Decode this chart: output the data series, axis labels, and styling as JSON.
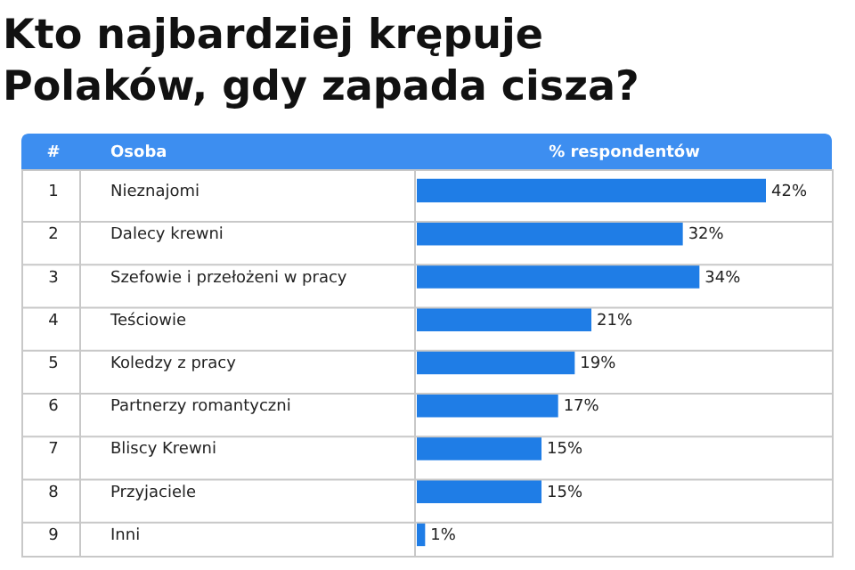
{
  "chart_data": {
    "type": "bar",
    "orientation": "horizontal",
    "title": "Kto najbardziej krępuje\nPolaków, gdy zapada cisza?",
    "ylabel": "Osoba",
    "xlabel": "% respondentów",
    "annotations": [
      "#",
      "1",
      "2",
      "3",
      "4",
      "5",
      "6",
      "7",
      "8",
      "9"
    ],
    "categories": [
      "Nieznajomi",
      "Dalecy krewni",
      "Szefowie i przełożeni w pracy",
      "Teściowie",
      "Koledzy z pracy",
      "Partnerzy romantyczni",
      "Bliscy Krewni",
      "Przyjaciele",
      "Inni"
    ],
    "values": [
      42,
      32,
      34,
      21,
      19,
      17,
      15,
      15,
      1
    ],
    "value_labels": [
      "42%",
      "32%",
      "34%",
      "21%",
      "19%",
      "17%",
      "15%",
      "15%",
      "1%"
    ],
    "color": "#1f7de6",
    "grid": "y",
    "tick_labels": false
  }
}
